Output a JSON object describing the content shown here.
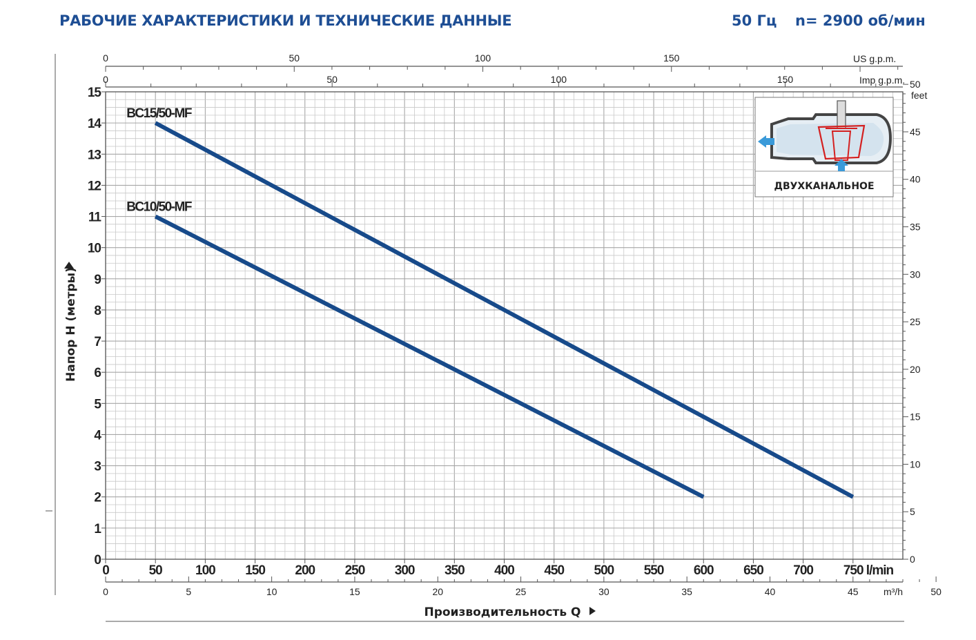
{
  "header": {
    "title": "РАБОЧИЕ ХАРАКТЕРИСТИКИ И ТЕХНИЧЕСКИЕ ДАННЫЕ",
    "frequency": "50 Гц",
    "speed": "n= 2900 об/мин"
  },
  "inset": {
    "caption": "ДВУХКАНАЛЬНОЕ",
    "icon": "dual-channel-impeller-icon"
  },
  "chart_data": {
    "type": "line",
    "xlabel": "Производительность Q",
    "ylabel": "Напор H (метры)",
    "x_unit": "l/min",
    "xlim": [
      0,
      800
    ],
    "ylim": [
      0,
      15
    ],
    "x_ticks": [
      0,
      50,
      100,
      150,
      200,
      250,
      300,
      350,
      400,
      450,
      500,
      550,
      600,
      650,
      700,
      750
    ],
    "x_tick_last_label": "750 l/min",
    "y_ticks": [
      0,
      1,
      2,
      3,
      4,
      5,
      6,
      7,
      8,
      9,
      10,
      11,
      12,
      13,
      14,
      15
    ],
    "grid": true,
    "series": [
      {
        "name": "BC15/50-MF",
        "x": [
          50,
          750
        ],
        "y": [
          14,
          2
        ]
      },
      {
        "name": "BC10/50-MF",
        "x": [
          50,
          600
        ],
        "y": [
          11,
          2
        ]
      }
    ],
    "secondary_axes": {
      "m3h": {
        "label": "m³/h",
        "ticks": [
          0,
          5,
          10,
          15,
          20,
          25,
          30,
          35,
          40,
          45,
          50
        ]
      },
      "us_gpm": {
        "label": "US g.p.m.",
        "ticks": [
          0,
          50,
          100,
          150
        ]
      },
      "imp_gpm": {
        "label": "Imp g.p.m.",
        "ticks": [
          0,
          50,
          100,
          150
        ]
      },
      "feet": {
        "label": "feet",
        "ticks": [
          0,
          5,
          10,
          15,
          20,
          25,
          30,
          35,
          40,
          45,
          50
        ]
      }
    },
    "colors": {
      "curve": "#174a8a",
      "header": "#1e4e94",
      "arrow": "#3a9ad9",
      "impeller": "#d42020"
    }
  }
}
